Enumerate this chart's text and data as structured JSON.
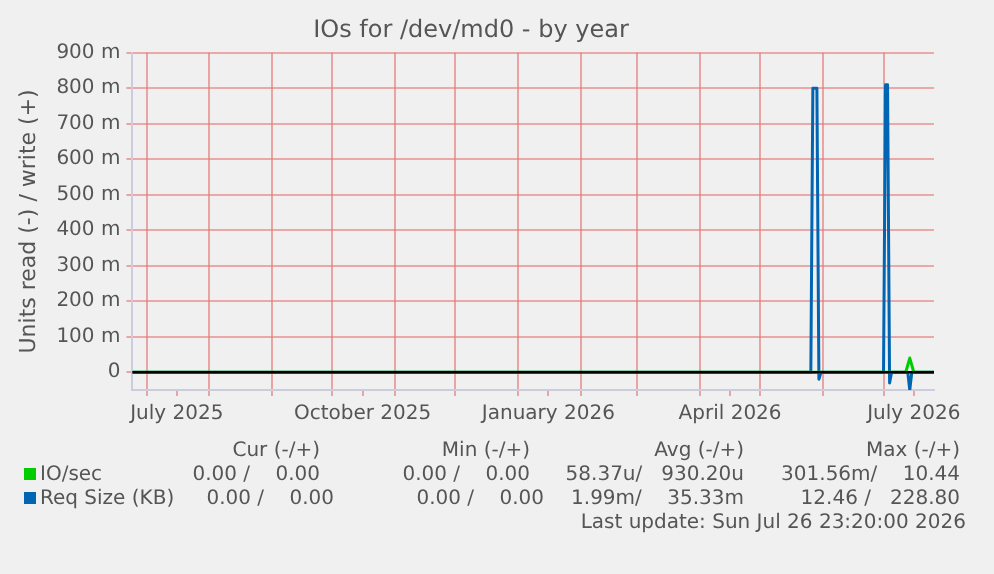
{
  "chart_data": {
    "type": "line",
    "title": "IOs for /dev/md0 - by year",
    "ylabel": "Units read (-) / write (+)",
    "series": [
      {
        "name": "IO/sec",
        "color": "#00cc00",
        "x": [
          "2025-06-24",
          "2026-07-12",
          "2026-07-14",
          "2026-07-16",
          "2026-07-26"
        ],
        "values": [
          0,
          0,
          40,
          0,
          0
        ]
      },
      {
        "name": "Req Size (KB)",
        "color": "#0066b3",
        "x": [
          "2025-06-24",
          "2026-05-26",
          "2026-05-27",
          "2026-05-29",
          "2026-05-30",
          "2026-05-31",
          "2026-07-01",
          "2026-07-02",
          "2026-07-03",
          "2026-07-04",
          "2026-07-05",
          "2026-07-13",
          "2026-07-14",
          "2026-07-15",
          "2026-07-26"
        ],
        "values": [
          0,
          0,
          800,
          800,
          -20,
          0,
          0,
          810,
          810,
          -30,
          0,
          0,
          -50,
          0,
          0
        ]
      }
    ],
    "xlim": [
      "2025-06-24",
      "2026-07-26"
    ],
    "xticks": [
      {
        "value": "2025-07-01",
        "label": null
      },
      {
        "value": "2025-07-16",
        "label": "July 2025"
      },
      {
        "value": "2025-08-01",
        "label": null
      },
      {
        "value": "2025-09-01",
        "label": null
      },
      {
        "value": "2025-10-01",
        "label": null
      },
      {
        "value": "2025-10-16",
        "label": "October 2025"
      },
      {
        "value": "2025-11-01",
        "label": null
      },
      {
        "value": "2025-12-01",
        "label": null
      },
      {
        "value": "2026-01-01",
        "label": null
      },
      {
        "value": "2026-01-16",
        "label": "January 2026"
      },
      {
        "value": "2026-02-01",
        "label": null
      },
      {
        "value": "2026-03-01",
        "label": null
      },
      {
        "value": "2026-04-01",
        "label": null
      },
      {
        "value": "2026-04-16",
        "label": "April 2026"
      },
      {
        "value": "2026-05-01",
        "label": null
      },
      {
        "value": "2026-06-01",
        "label": null
      },
      {
        "value": "2026-07-01",
        "label": null
      },
      {
        "value": "2026-07-16",
        "label": "July 2026"
      }
    ],
    "ylim": [
      -50,
      900
    ],
    "yticks": [
      0,
      {
        "value": 100,
        "label": "100 m"
      },
      {
        "value": 200,
        "label": "200 m"
      },
      {
        "value": 300,
        "label": "300 m"
      },
      {
        "value": 400,
        "label": "400 m"
      },
      {
        "value": 500,
        "label": "500 m"
      },
      {
        "value": 600,
        "label": "600 m"
      },
      {
        "value": 700,
        "label": "700 m"
      },
      {
        "value": 800,
        "label": "800 m"
      },
      {
        "value": 900,
        "label": "900 m"
      }
    ],
    "ref_lines": [
      {
        "axis": "y",
        "value": 0,
        "color": "#000000"
      }
    ],
    "grid": true,
    "legend": "bottom left",
    "marker": "none",
    "line_style": "solid",
    "annotations": [
      "Cur (-/+)",
      "Min (-/+)",
      "Avg (-/+)",
      "Max (-/+)",
      "0.00 /    0.00",
      "0.00 /    0.00",
      "58.37u/   930.20u",
      "301.56m/    10.44",
      "0.00 /    0.00",
      "0.00 /    0.00",
      "1.99m/    35.33m",
      "12.46 /   228.80",
      "Last update: Sun Jul 26 23:20:00 2026"
    ]
  }
}
